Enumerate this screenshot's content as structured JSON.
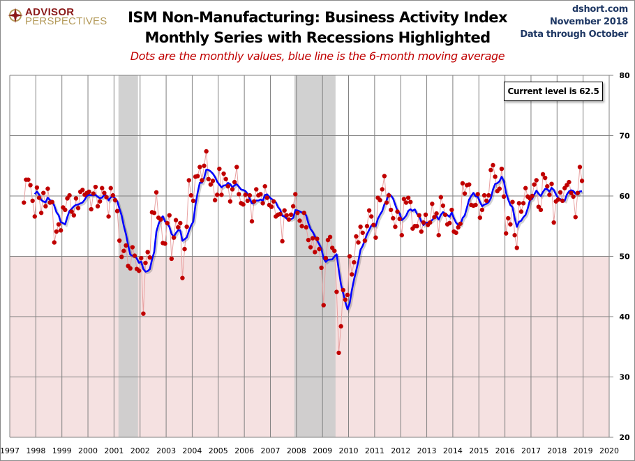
{
  "header": {
    "logo_top": "ADVISOR",
    "logo_bottom": "PERSPECTIVES",
    "title_line1": "ISM Non-Manufacturing: Business Activity Index",
    "title_line2": "Monthly Series with Recessions Highlighted",
    "subtitle": "Dots are the monthly values, blue line is the 6-month moving average",
    "source": "dshort.com",
    "date": "November 2018",
    "data_note": "Data through October"
  },
  "annotation": "Current level is 62.5",
  "colors": {
    "dots": "#c00000",
    "dot_line": "#e8a0a0",
    "moving_average": "#0000ff",
    "recession": "#cccccc",
    "contraction_zone": "#f5e1e1",
    "grid": "#808080"
  },
  "chart_data": {
    "type": "line",
    "title": "ISM Non-Manufacturing: Business Activity Index",
    "subtitle": "Monthly Series with Recessions Highlighted",
    "xlabel": "",
    "ylabel": "",
    "x_start": "1997-07",
    "x_end": "2018-10",
    "xlim": [
      1997,
      2020
    ],
    "ylim": [
      20,
      80
    ],
    "x_ticks": [
      "1997",
      "1998",
      "1999",
      "2000",
      "2001",
      "2002",
      "2003",
      "2004",
      "2005",
      "2006",
      "2007",
      "2008",
      "2009",
      "2010",
      "2011",
      "2012",
      "2013",
      "2014",
      "2015",
      "2016",
      "2017",
      "2018",
      "2019",
      "2020"
    ],
    "y_ticks": [
      "20",
      "30",
      "40",
      "50",
      "60",
      "70",
      "80"
    ],
    "y_axis_side": "right",
    "grid": true,
    "shaded_band": {
      "label": "contraction zone",
      "from": 20,
      "to": 50
    },
    "recessions": [
      {
        "start": 2001.17,
        "end": 2001.92
      },
      {
        "start": 2007.92,
        "end": 2009.5
      }
    ],
    "series": [
      {
        "name": "Monthly values",
        "style": "dots",
        "values": [
          58.9,
          62.7,
          62.7,
          61.8,
          59.2,
          56.6,
          61.4,
          59.7,
          57.2,
          60.5,
          58.3,
          61.2,
          58.9,
          59.0,
          52.3,
          54.1,
          55.3,
          54.3,
          58.1,
          57.7,
          59.6,
          60.1,
          57.4,
          56.8,
          59.6,
          58.0,
          60.7,
          61.0,
          60.2,
          60.5,
          60.7,
          57.8,
          60.4,
          61.5,
          58.3,
          59.1,
          61.3,
          60.5,
          59.8,
          56.6,
          61.3,
          60.1,
          59.3,
          57.5,
          52.6,
          49.9,
          50.9,
          51.8,
          48.4,
          48.0,
          51.5,
          50.1,
          47.9,
          47.6,
          49.7,
          40.5,
          48.9,
          50.7,
          49.8,
          57.3,
          57.2,
          60.6,
          56.4,
          56.1,
          52.2,
          52.1,
          55.5,
          56.8,
          49.6,
          53.1,
          56.0,
          54.8,
          55.5,
          46.4,
          51.2,
          54.9,
          62.6,
          60.1,
          59.2,
          63.2,
          63.3,
          64.8,
          62.6,
          65.0,
          67.4,
          62.8,
          61.9,
          62.5,
          59.3,
          60.2,
          64.5,
          60.2,
          63.7,
          62.8,
          61.6,
          59.1,
          61.1,
          62.3,
          64.8,
          60.3,
          58.8,
          58.6,
          60.2,
          59.2,
          60.1,
          55.8,
          59.1,
          61.1,
          60.1,
          60.3,
          58.8,
          61.6,
          59.7,
          58.5,
          58.2,
          59.1,
          56.6,
          56.9,
          57.0,
          52.5,
          57.6,
          56.8,
          56.1,
          56.9,
          58.3,
          60.3,
          57.2,
          55.9,
          55.0,
          57.2,
          54.8,
          52.7,
          51.5,
          53.0,
          50.7,
          52.9,
          51.2,
          48.1,
          41.9,
          49.7,
          52.7,
          53.2,
          51.4,
          50.9,
          44.1,
          34.0,
          38.4,
          44.4,
          42.8,
          43.6,
          50.0,
          47.0,
          49.0,
          53.3,
          52.3,
          54.9,
          53.9,
          52.6,
          55.0,
          57.6,
          56.6,
          55.2,
          53.1,
          59.7,
          59.3,
          61.1,
          63.3,
          58.9,
          60.1,
          57.7,
          56.3,
          54.9,
          57.4,
          56.2,
          53.5,
          59.5,
          58.9,
          59.7,
          59.0,
          54.6,
          55.0,
          55.0,
          56.8,
          54.1,
          55.6,
          56.9,
          55.2,
          55.6,
          58.7,
          56.5,
          57.1,
          53.5,
          59.8,
          58.4,
          56.9,
          55.3,
          55.5,
          57.7,
          54.1,
          53.9,
          54.8,
          55.4,
          62.1,
          60.4,
          61.8,
          61.9,
          58.5,
          58.4,
          58.5,
          60.3,
          56.4,
          57.7,
          60.1,
          59.2,
          60.1,
          64.3,
          65.1,
          63.2,
          60.8,
          61.2,
          64.5,
          59.9,
          53.8,
          56.3,
          55.3,
          59.0,
          53.5,
          51.4,
          58.8,
          57.4,
          58.8,
          61.3,
          59.9,
          59.6,
          60.0,
          61.9,
          62.6,
          58.2,
          57.7,
          63.6,
          63.0,
          61.6,
          60.2,
          62.0,
          55.6,
          59.1,
          59.4,
          60.6,
          59.2,
          61.3,
          61.8,
          62.3,
          60.5,
          59.9,
          56.5,
          60.5,
          64.8,
          62.5
        ]
      },
      {
        "name": "6-month moving average",
        "style": "line",
        "window": 6
      }
    ]
  }
}
